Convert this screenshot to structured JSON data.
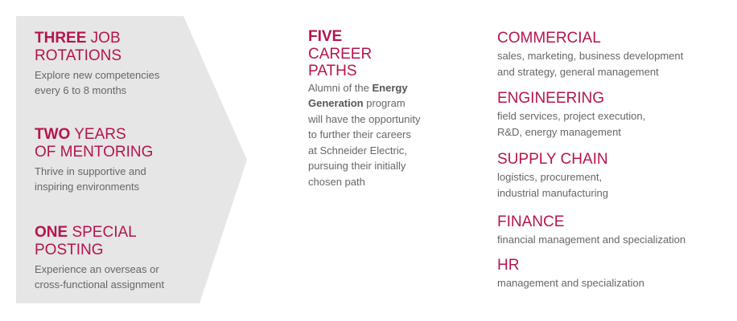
{
  "colors": {
    "accent": "#b5144f",
    "text": "#666666",
    "panel": "#e6e6e6"
  },
  "left": [
    {
      "bold": "THREE",
      "rest": " JOB",
      "line2": "ROTATIONS",
      "desc1": "Explore new competencies",
      "desc2": "every 6 to 8 months"
    },
    {
      "bold": "TWO",
      "rest": " YEARS",
      "line2": "OF MENTORING",
      "desc1": "Thrive in supportive and",
      "desc2": "inspiring environments"
    },
    {
      "bold": "ONE",
      "rest": " SPECIAL",
      "line2": "POSTING",
      "desc1": "Experience an overseas or",
      "desc2": "cross-functional assignment"
    }
  ],
  "middle": {
    "bold": "FIVE",
    "line2": "CAREER",
    "line3": "PATHS",
    "desc_a": "Alumni of the ",
    "desc_bold1": "Energy",
    "desc_bold2": "Generation",
    "desc_b": " program",
    "desc_c": "will have the opportunity",
    "desc_d": "to further their careers",
    "desc_e": "at Schneider Electric,",
    "desc_f": "pursuing their initially",
    "desc_g": "chosen path"
  },
  "paths": [
    {
      "title": "COMMERCIAL",
      "desc1": "sales, marketing, business development",
      "desc2": "and strategy, general management"
    },
    {
      "title": "ENGINEERING",
      "desc1": "field services, project execution,",
      "desc2": "R&D, energy management"
    },
    {
      "title": "SUPPLY CHAIN",
      "desc1": "logistics, procurement,",
      "desc2": "industrial manufacturing"
    },
    {
      "title": "FINANCE",
      "desc1": "financial management and specialization",
      "desc2": ""
    },
    {
      "title": "HR",
      "desc1": "management and specialization",
      "desc2": ""
    }
  ]
}
